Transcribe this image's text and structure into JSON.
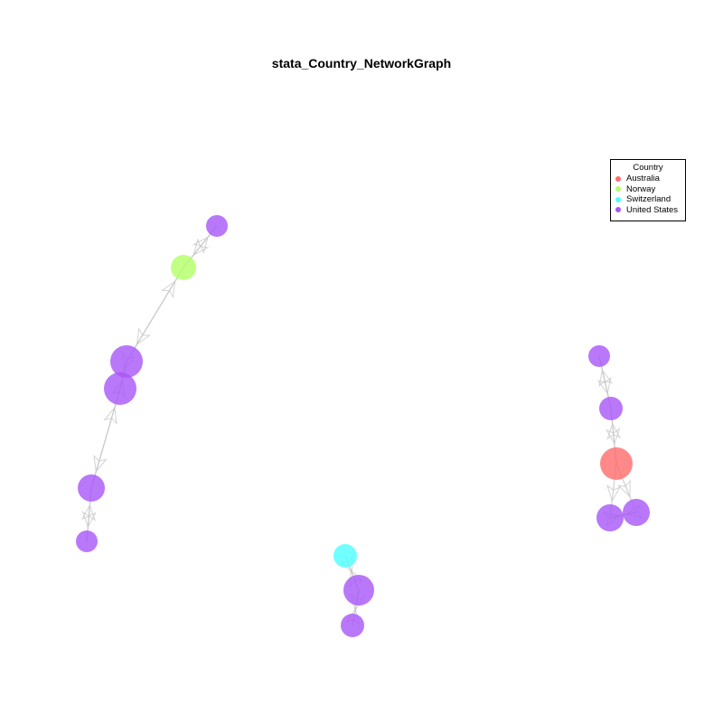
{
  "title": "stata_Country_NetworkGraph",
  "legend": {
    "title": "Country",
    "items": [
      {
        "label": "Australia",
        "color": "#ff6b6b"
      },
      {
        "label": "Norway",
        "color": "#b2ff66"
      },
      {
        "label": "Switzerland",
        "color": "#4dffff"
      },
      {
        "label": "United States",
        "color": "#a855f7"
      }
    ],
    "placement": "top-right"
  },
  "colors": {
    "Australia": "#ff6b6b",
    "Norway": "#b2ff66",
    "Switzerland": "#4dffff",
    "United States": "#a855f7",
    "edge": "#c8c8c8"
  },
  "nodes": [
    {
      "id": "n1",
      "country": "United States"
    },
    {
      "id": "n2",
      "country": "Norway"
    },
    {
      "id": "n3",
      "country": "United States"
    },
    {
      "id": "n4",
      "country": "United States"
    },
    {
      "id": "n5",
      "country": "United States"
    },
    {
      "id": "n6",
      "country": "United States"
    },
    {
      "id": "n7",
      "country": "United States"
    },
    {
      "id": "n8",
      "country": "United States"
    },
    {
      "id": "n9",
      "country": "Australia"
    },
    {
      "id": "n10",
      "country": "United States"
    },
    {
      "id": "n11",
      "country": "United States"
    },
    {
      "id": "n12",
      "country": "Switzerland"
    },
    {
      "id": "n13",
      "country": "United States"
    },
    {
      "id": "n14",
      "country": "United States"
    }
  ],
  "edges": [
    [
      "n1",
      "n2"
    ],
    [
      "n2",
      "n1"
    ],
    [
      "n2",
      "n3"
    ],
    [
      "n3",
      "n2"
    ],
    [
      "n3",
      "n4"
    ],
    [
      "n4",
      "n3"
    ],
    [
      "n4",
      "n5"
    ],
    [
      "n5",
      "n4"
    ],
    [
      "n5",
      "n6"
    ],
    [
      "n6",
      "n5"
    ],
    [
      "n7",
      "n8"
    ],
    [
      "n8",
      "n7"
    ],
    [
      "n8",
      "n9"
    ],
    [
      "n9",
      "n8"
    ],
    [
      "n9",
      "n10"
    ],
    [
      "n9",
      "n11"
    ],
    [
      "n10",
      "n11"
    ],
    [
      "n11",
      "n10"
    ],
    [
      "n12",
      "n13"
    ],
    [
      "n13",
      "n12"
    ],
    [
      "n13",
      "n14"
    ],
    [
      "n14",
      "n13"
    ]
  ]
}
